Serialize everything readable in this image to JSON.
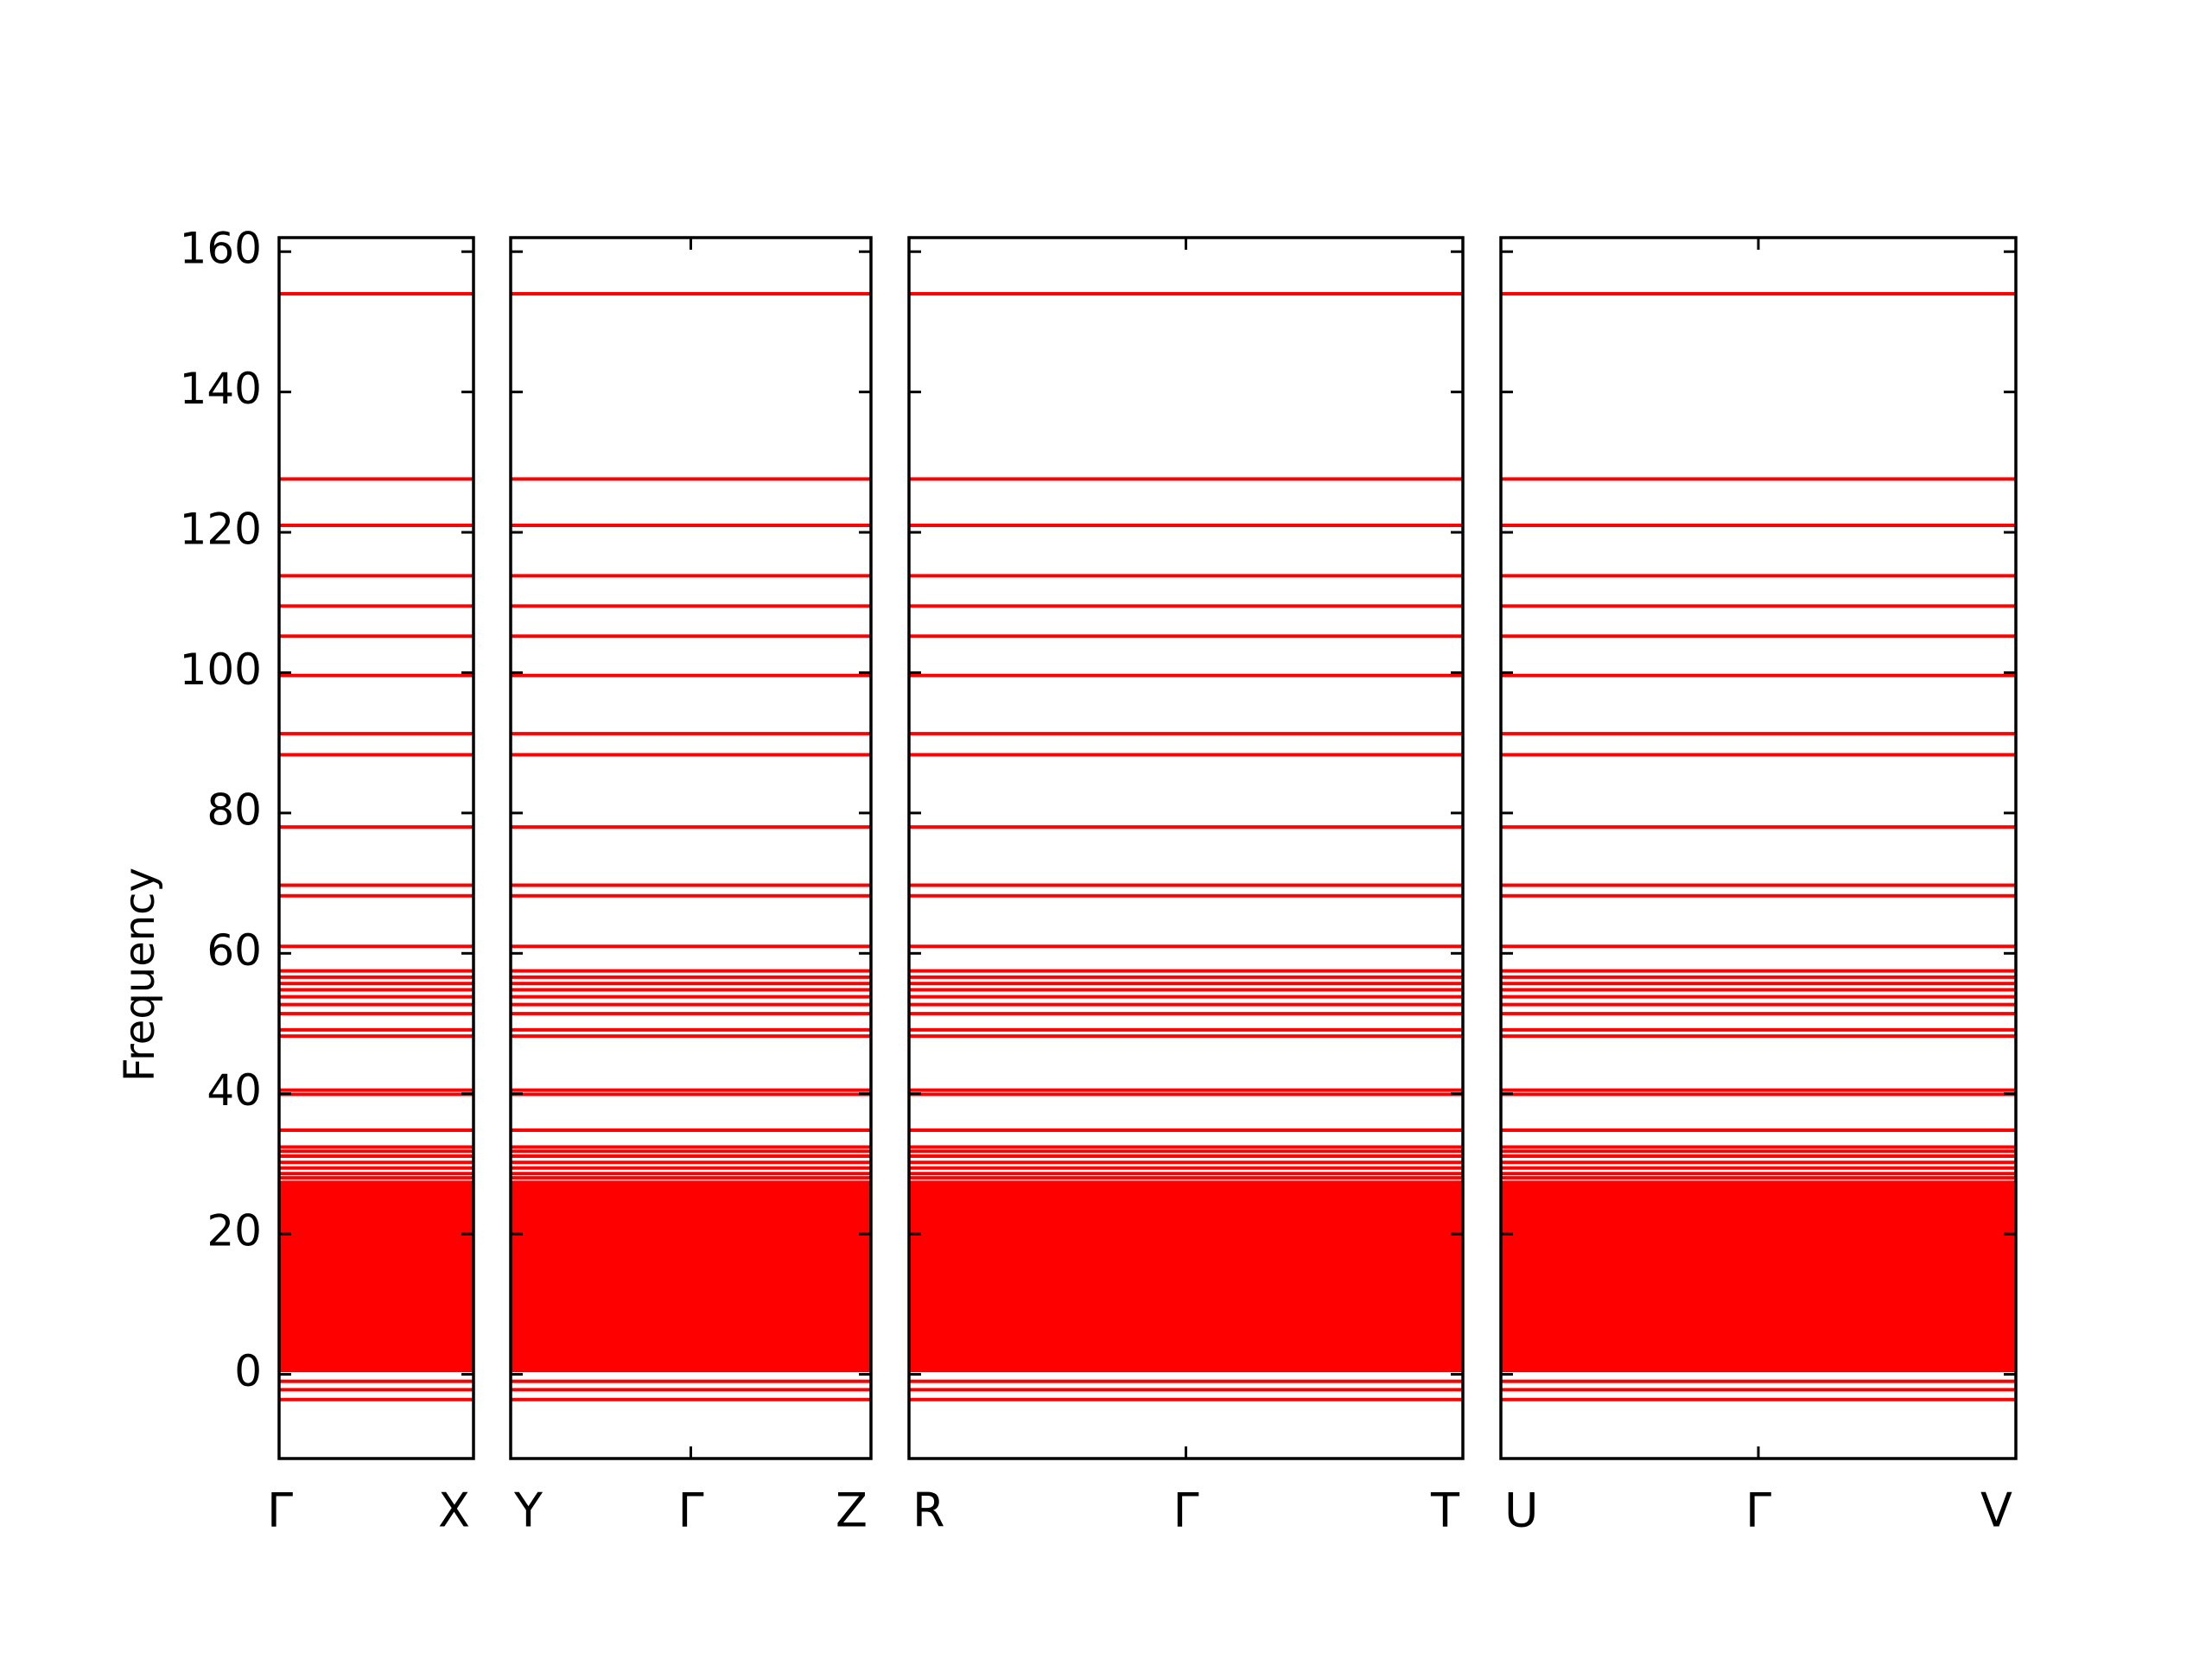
{
  "chart_data": {
    "type": "line",
    "title": "",
    "xlabel": "",
    "ylabel": "Frequency",
    "ylim": [
      -12,
      162
    ],
    "yticks": [
      0,
      20,
      40,
      60,
      80,
      100,
      120,
      140,
      160
    ],
    "grid": false,
    "legend": "none",
    "line_color": "#ff0000",
    "panels": [
      {
        "labels": [
          "Γ",
          "X"
        ],
        "length": 1
      },
      {
        "labels": [
          "Y",
          "Γ",
          "Z"
        ],
        "length": 2
      },
      {
        "labels": [
          "R",
          "Γ",
          "T"
        ],
        "length": 2
      },
      {
        "labels": [
          "U",
          "Γ",
          "V"
        ],
        "length": 2
      }
    ],
    "label_texts": [
      "Γ",
      "X",
      "Y",
      "Γ",
      "Z",
      "R",
      "Γ",
      "T",
      "U",
      "Γ",
      "V"
    ],
    "flat_bands": [
      154.0,
      127.6,
      121.0,
      113.8,
      109.5,
      105.2,
      99.6,
      91.3,
      88.3,
      78.0,
      69.7,
      68.2,
      61.0,
      57.5,
      56.6,
      55.7,
      54.8,
      53.8,
      52.7,
      51.4,
      49.1,
      48.2,
      40.5,
      39.9,
      34.8,
      32.4,
      31.8,
      31.1,
      30.2,
      29.4,
      28.6,
      28.0,
      -1.0,
      -2.2,
      -3.6
    ],
    "dense_band_range": [
      0.3,
      27.6
    ]
  }
}
